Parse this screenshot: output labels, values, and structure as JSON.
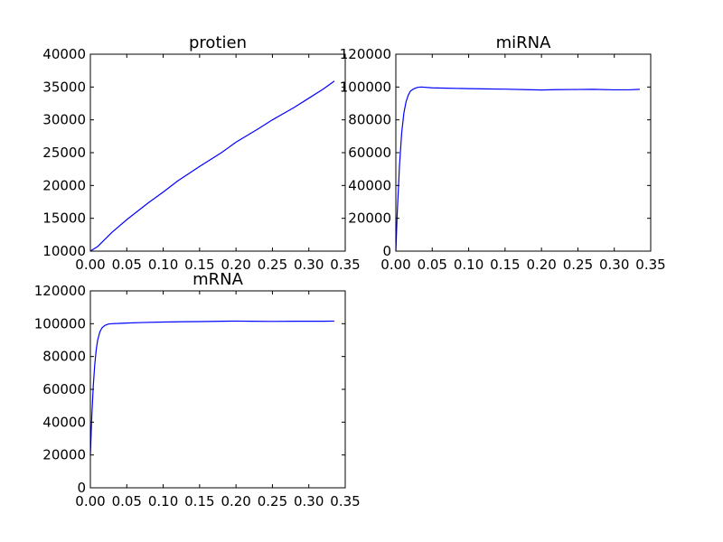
{
  "chart_data": [
    {
      "type": "line",
      "title": "protien",
      "xlabel": "",
      "ylabel": "",
      "xlim": [
        0.0,
        0.35
      ],
      "ylim": [
        10000,
        40000
      ],
      "xticks": [
        "0.00",
        "0.05",
        "0.10",
        "0.15",
        "0.20",
        "0.25",
        "0.30",
        "0.35"
      ],
      "yticks": [
        "10000",
        "15000",
        "20000",
        "25000",
        "30000",
        "35000",
        "40000"
      ],
      "grid": false,
      "color": "#0000ff",
      "series": [
        {
          "x": [
            0.0,
            0.01,
            0.02,
            0.03,
            0.05,
            0.08,
            0.1,
            0.12,
            0.15,
            0.18,
            0.2,
            0.23,
            0.25,
            0.28,
            0.3,
            0.32,
            0.335
          ],
          "y": [
            10000,
            10700,
            11800,
            12900,
            14800,
            17400,
            19000,
            20700,
            22900,
            25000,
            26600,
            28600,
            30000,
            31900,
            33300,
            34700,
            35900
          ]
        }
      ]
    },
    {
      "type": "line",
      "title": "miRNA",
      "xlabel": "",
      "ylabel": "",
      "xlim": [
        0.0,
        0.35
      ],
      "ylim": [
        0,
        120000
      ],
      "xticks": [
        "0.00",
        "0.05",
        "0.10",
        "0.15",
        "0.20",
        "0.25",
        "0.30",
        "0.35"
      ],
      "yticks": [
        "0",
        "20000",
        "40000",
        "60000",
        "80000",
        "100000",
        "120000"
      ],
      "grid": false,
      "color": "#0000ff",
      "series": [
        {
          "x": [
            0.0,
            0.002,
            0.005,
            0.008,
            0.011,
            0.014,
            0.017,
            0.02,
            0.025,
            0.03,
            0.035,
            0.05,
            0.07,
            0.1,
            0.13,
            0.15,
            0.18,
            0.2,
            0.22,
            0.25,
            0.27,
            0.3,
            0.32,
            0.335
          ],
          "y": [
            0,
            24000,
            52000,
            72000,
            84000,
            91000,
            95000,
            97500,
            99000,
            99800,
            100000,
            99500,
            99300,
            99000,
            98800,
            98700,
            98400,
            98200,
            98400,
            98500,
            98600,
            98300,
            98300,
            98600
          ]
        }
      ]
    },
    {
      "type": "line",
      "title": "mRNA",
      "xlabel": "",
      "ylabel": "",
      "xlim": [
        0.0,
        0.35
      ],
      "ylim": [
        0,
        120000
      ],
      "xticks": [
        "0.00",
        "0.05",
        "0.10",
        "0.15",
        "0.20",
        "0.25",
        "0.30",
        "0.35"
      ],
      "yticks": [
        "0",
        "20000",
        "40000",
        "60000",
        "80000",
        "100000",
        "120000"
      ],
      "grid": false,
      "color": "#0000ff",
      "series": [
        {
          "x": [
            0.0,
            0.002,
            0.004,
            0.006,
            0.008,
            0.01,
            0.013,
            0.016,
            0.02,
            0.025,
            0.03,
            0.04,
            0.05,
            0.07,
            0.1,
            0.13,
            0.15,
            0.18,
            0.2,
            0.22,
            0.25,
            0.28,
            0.3,
            0.32,
            0.335
          ],
          "y": [
            20000,
            44000,
            62000,
            75000,
            84000,
            90000,
            95000,
            97500,
            99000,
            99800,
            100000,
            100200,
            100400,
            100700,
            101000,
            101200,
            101300,
            101500,
            101600,
            101500,
            101400,
            101500,
            101500,
            101500,
            101600
          ]
        }
      ]
    }
  ]
}
